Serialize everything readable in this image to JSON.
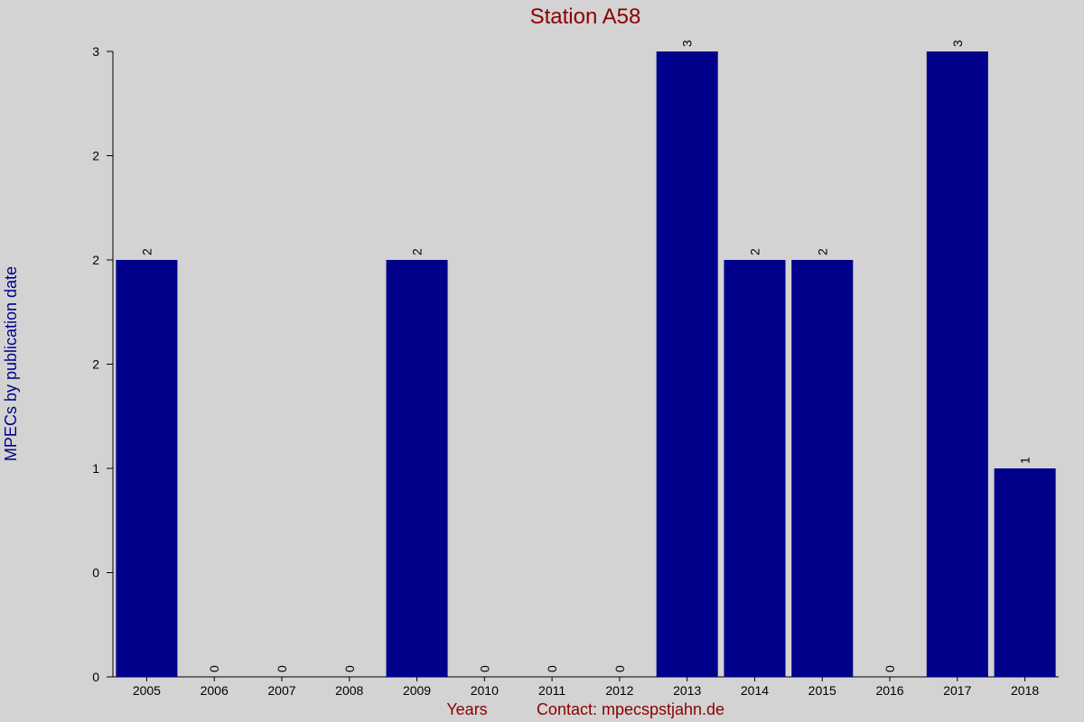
{
  "chart_data": {
    "type": "bar",
    "title": "Station A58",
    "x_label": "Years",
    "y_label": "MPECs by publication date",
    "footer": "Contact: mpecspstjahn.de",
    "categories": [
      "2005",
      "2006",
      "2007",
      "2008",
      "2009",
      "2010",
      "2011",
      "2012",
      "2013",
      "2014",
      "2015",
      "2016",
      "2017",
      "2018"
    ],
    "values": [
      2,
      0,
      0,
      0,
      2,
      0,
      0,
      0,
      3,
      2,
      2,
      0,
      3,
      1
    ],
    "color": "#00008b",
    "ylim": [
      0,
      3
    ],
    "yticks": [
      0,
      {
        "value": 0.5,
        "label": "0"
      },
      1,
      {
        "value": 1.5,
        "label": "2"
      },
      2,
      {
        "value": 2.5,
        "label": "2"
      },
      3
    ],
    "data_labels": true
  }
}
